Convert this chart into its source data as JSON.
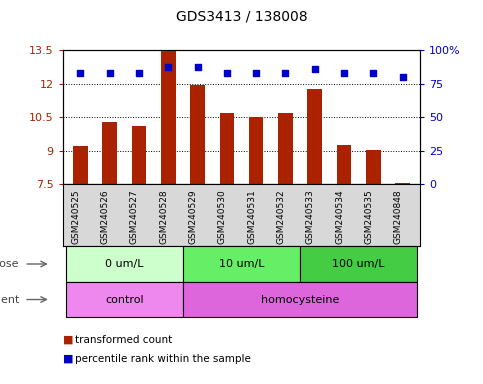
{
  "title": "GDS3413 / 138008",
  "samples": [
    "GSM240525",
    "GSM240526",
    "GSM240527",
    "GSM240528",
    "GSM240529",
    "GSM240530",
    "GSM240531",
    "GSM240532",
    "GSM240533",
    "GSM240534",
    "GSM240535",
    "GSM240848"
  ],
  "transformed_count": [
    9.2,
    10.3,
    10.1,
    13.45,
    11.95,
    10.7,
    10.5,
    10.7,
    11.75,
    9.25,
    9.05,
    7.55
  ],
  "percentile_rank": [
    83,
    83,
    83,
    87,
    87,
    83,
    83,
    83,
    86,
    83,
    83,
    80
  ],
  "ylim_left": [
    7.5,
    13.5
  ],
  "ylim_right": [
    0,
    100
  ],
  "yticks_left": [
    7.5,
    9.0,
    10.5,
    12.0,
    13.5
  ],
  "yticks_right": [
    0,
    25,
    50,
    75,
    100
  ],
  "ytick_labels_left": [
    "7.5",
    "9",
    "10.5",
    "12",
    "13.5"
  ],
  "ytick_labels_right": [
    "0",
    "25",
    "50",
    "75",
    "100%"
  ],
  "bar_color": "#aa2200",
  "dot_color": "#0000cc",
  "dose_groups": [
    {
      "label": "0 um/L",
      "start": 0,
      "end": 3,
      "color": "#ccffcc"
    },
    {
      "label": "10 um/L",
      "start": 4,
      "end": 7,
      "color": "#66ee66"
    },
    {
      "label": "100 um/L",
      "start": 8,
      "end": 11,
      "color": "#44cc44"
    }
  ],
  "agent_groups": [
    {
      "label": "control",
      "start": 0,
      "end": 3,
      "color": "#ee88ee"
    },
    {
      "label": "homocysteine",
      "start": 4,
      "end": 11,
      "color": "#dd66dd"
    }
  ],
  "dose_label": "dose",
  "agent_label": "agent",
  "legend_bar_label": "transformed count",
  "legend_dot_label": "percentile rank within the sample",
  "bg_color": "#d8d8d8",
  "bar_width": 0.5
}
